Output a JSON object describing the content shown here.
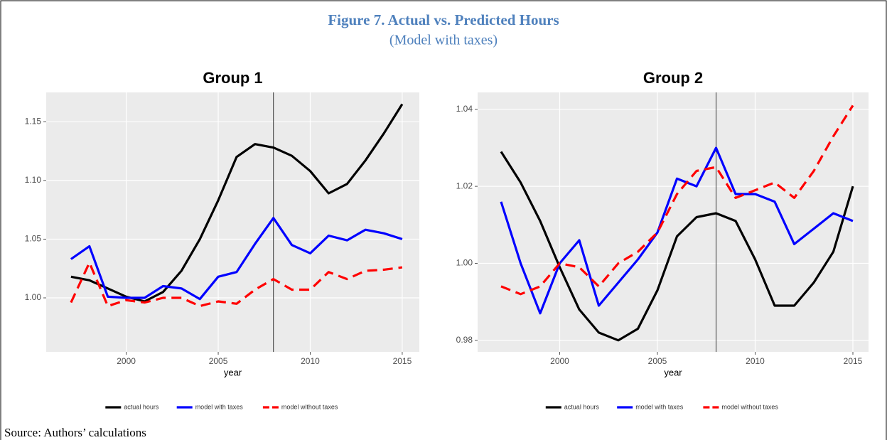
{
  "header": {
    "title": "Figure 7. Actual vs. Predicted Hours",
    "subtitle": "(Model with taxes)"
  },
  "chart_data": [
    {
      "type": "line",
      "title": "Group 1",
      "x_label": "year",
      "x": [
        1997,
        1998,
        1999,
        2000,
        2001,
        2002,
        2003,
        2004,
        2005,
        2006,
        2007,
        2008,
        2009,
        2010,
        2011,
        2012,
        2013,
        2014,
        2015
      ],
      "series": [
        {
          "name": "actual hours",
          "color": "#000000",
          "dash": false,
          "values": [
            1.018,
            1.015,
            1.008,
            1.001,
            0.997,
            1.005,
            1.023,
            1.05,
            1.083,
            1.12,
            1.131,
            1.128,
            1.121,
            1.108,
            1.089,
            1.097,
            1.117,
            1.14,
            1.165
          ]
        },
        {
          "name": "model with taxes",
          "color": "#0000ff",
          "dash": false,
          "values": [
            1.033,
            1.044,
            1.001,
            1.0,
            1.0,
            1.01,
            1.008,
            0.999,
            1.018,
            1.022,
            1.046,
            1.068,
            1.045,
            1.038,
            1.053,
            1.049,
            1.058,
            1.055,
            1.05
          ]
        },
        {
          "name": "model without taxes",
          "color": "#ff0000",
          "dash": true,
          "values": [
            0.996,
            1.03,
            0.993,
            0.998,
            0.996,
            1.0,
            1.0,
            0.993,
            0.997,
            0.995,
            1.007,
            1.016,
            1.007,
            1.007,
            1.022,
            1.016,
            1.023,
            1.024,
            1.026
          ]
        }
      ],
      "vline": 2008,
      "xlim": [
        1995.65,
        2015.93
      ],
      "xticks": [
        2000,
        2005,
        2010,
        2015
      ],
      "ylim": [
        0.954,
        1.175
      ],
      "yticks": [
        {
          "value": 1,
          "label": "1.00"
        },
        1.05,
        {
          "value": 1.1,
          "label": "1.10"
        },
        1.15
      ],
      "grid": true,
      "legend": "bottom"
    },
    {
      "type": "line",
      "title": "Group 2",
      "x_label": "year",
      "x": [
        1997,
        1998,
        1999,
        2000,
        2001,
        2002,
        2003,
        2004,
        2005,
        2006,
        2007,
        2008,
        2009,
        2010,
        2011,
        2012,
        2013,
        2014,
        2015
      ],
      "series": [
        {
          "name": "actual hours",
          "color": "#000000",
          "dash": false,
          "values": [
            1.029,
            1.021,
            1.011,
            0.999,
            0.988,
            0.982,
            0.98,
            0.983,
            0.993,
            1.007,
            1.012,
            1.013,
            1.011,
            1.001,
            0.989,
            0.989,
            0.995,
            1.003,
            1.02
          ]
        },
        {
          "name": "model with taxes",
          "color": "#0000ff",
          "dash": false,
          "values": [
            1.016,
            1.0,
            0.987,
            1.0,
            1.006,
            0.989,
            0.995,
            1.001,
            1.008,
            1.022,
            1.02,
            1.03,
            1.018,
            1.018,
            1.016,
            1.005,
            1.009,
            1.013,
            1.011
          ]
        },
        {
          "name": "model without taxes",
          "color": "#ff0000",
          "dash": true,
          "values": [
            0.994,
            0.992,
            0.994,
            1.0,
            0.999,
            0.994,
            1.0,
            1.003,
            1.008,
            1.018,
            1.024,
            1.025,
            1.017,
            1.019,
            1.021,
            1.017,
            1.024,
            1.033,
            1.041
          ]
        }
      ],
      "vline": 2008,
      "xlim": [
        1995.8,
        2015.8
      ],
      "xticks": [
        2000,
        2005,
        2010,
        2015
      ],
      "ylim": [
        0.977,
        1.0444
      ],
      "yticks": [
        0.98,
        {
          "value": 1,
          "label": "1.00"
        },
        1.02,
        1.04
      ],
      "grid": true,
      "legend": "bottom"
    }
  ],
  "source": "Source: Authors’ calculations"
}
